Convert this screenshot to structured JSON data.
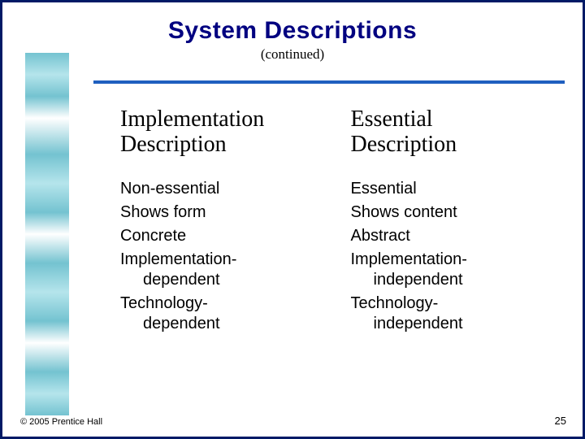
{
  "title": "System Descriptions",
  "subtitle": "(continued)",
  "columns": {
    "left": {
      "heading_line1": "Implementation",
      "heading_line2": "Description",
      "items": {
        "i0": "Non-essential",
        "i1": "Shows form",
        "i2": "Concrete",
        "i3_main": "Implementation-",
        "i3_sub": "dependent",
        "i4_main": "Technology-",
        "i4_sub": "dependent"
      }
    },
    "right": {
      "heading_line1": "Essential",
      "heading_line2": "Description",
      "items": {
        "i0": "Essential",
        "i1": "Shows content",
        "i2": "Abstract",
        "i3_main": "Implementation-",
        "i3_sub": "independent",
        "i4_main": "Technology-",
        "i4_sub": "independent"
      }
    }
  },
  "footer": {
    "copyright": "© 2005  Prentice Hall",
    "page_number": "25"
  },
  "colors": {
    "border": "#001a66",
    "title": "#000080",
    "rule": "#1f5fbf",
    "sidebar_a": "#5bb8c8",
    "sidebar_b": "#a8e0e8",
    "text": "#000000",
    "background": "#ffffff"
  }
}
